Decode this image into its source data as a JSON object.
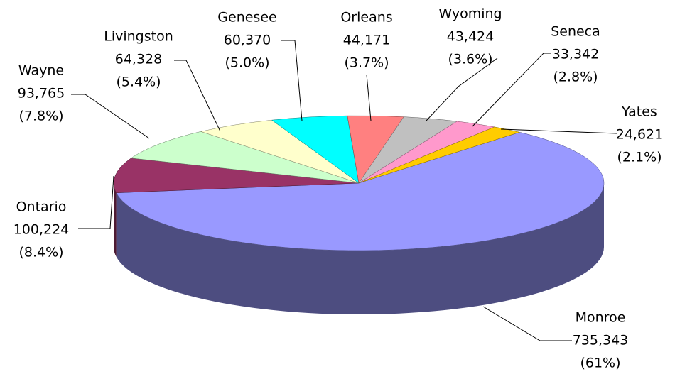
{
  "chart_data": {
    "type": "pie3d",
    "categories": [
      "Monroe",
      "Ontario",
      "Wayne",
      "Livingston",
      "Genesee",
      "Orleans",
      "Wyoming",
      "Seneca",
      "Yates"
    ],
    "values": [
      735343,
      100224,
      93765,
      64328,
      60370,
      44171,
      43424,
      33342,
      24621
    ],
    "value_labels": [
      "735,343",
      "100,224",
      "93,765",
      "64,328",
      "60,370",
      "44,171",
      "43,424",
      "33,342",
      "24,621"
    ],
    "percents": [
      61,
      8.4,
      7.8,
      5.4,
      5.0,
      3.7,
      3.6,
      2.8,
      2.1
    ],
    "percent_labels": [
      "(61%)",
      "(8.4%)",
      "(7.8%)",
      "(5.4%)",
      "(5.0%)",
      "(3.7%)",
      "(3.6%)",
      "(2.8%)",
      "(2.1%)"
    ],
    "colors": [
      "#9999ff",
      "#993366",
      "#ccffcc",
      "#ffffcc",
      "#00ffff",
      "#ff8080",
      "#c0c0c0",
      "#ff99cc",
      "#ffcc00"
    ]
  }
}
